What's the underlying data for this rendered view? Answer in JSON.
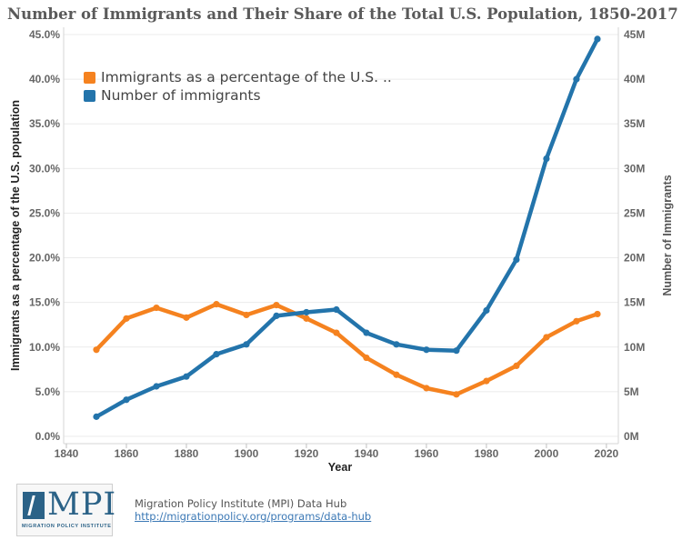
{
  "chart_data": {
    "type": "line",
    "title": "Number of Immigrants and Their Share of the Total U.S. Population, 1850-2017",
    "xlabel": "Year",
    "ylabel_left": "Immigrants as a percentage of the U.S. population",
    "ylabel_right": "Number of Immigrants",
    "xlim": [
      1840,
      2020
    ],
    "x_ticks": [
      1840,
      1860,
      1880,
      1900,
      1920,
      1940,
      1960,
      1980,
      2000,
      2020
    ],
    "ylim_left": [
      0,
      45
    ],
    "left_ticks": [
      "0.0%",
      "5.0%",
      "10.0%",
      "15.0%",
      "20.0%",
      "25.0%",
      "30.0%",
      "35.0%",
      "40.0%",
      "45.0%"
    ],
    "ylim_right": [
      0,
      45
    ],
    "right_ticks": [
      "0M",
      "5M",
      "10M",
      "15M",
      "20M",
      "25M",
      "30M",
      "35M",
      "40M",
      "45M"
    ],
    "grid": true,
    "legend_position": "top-left",
    "series": [
      {
        "name": "Immigrants as a percentage of the U.S. ..",
        "axis": "left",
        "color": "#f5821f",
        "x": [
          1850,
          1860,
          1870,
          1880,
          1890,
          1900,
          1910,
          1920,
          1930,
          1940,
          1950,
          1960,
          1970,
          1980,
          1990,
          2000,
          2010,
          2017
        ],
        "values": [
          9.7,
          13.2,
          14.4,
          13.3,
          14.8,
          13.6,
          14.7,
          13.2,
          11.6,
          8.8,
          6.9,
          5.4,
          4.7,
          6.2,
          7.9,
          11.1,
          12.9,
          13.7
        ]
      },
      {
        "name": "Number of immigrants",
        "axis": "right",
        "color": "#2374ab",
        "x": [
          1850,
          1860,
          1870,
          1880,
          1890,
          1900,
          1910,
          1920,
          1930,
          1940,
          1950,
          1960,
          1970,
          1980,
          1990,
          2000,
          2010,
          2017
        ],
        "values": [
          2.2,
          4.1,
          5.6,
          6.7,
          9.2,
          10.3,
          13.5,
          13.9,
          14.2,
          11.6,
          10.3,
          9.7,
          9.6,
          14.1,
          19.8,
          31.1,
          40.0,
          44.5
        ]
      }
    ]
  },
  "footer": {
    "logo_text": "MPI",
    "logo_subtext": "MIGRATION POLICY INSTITUTE",
    "source": "Migration Policy Institute (MPI) Data Hub",
    "link": "http://migrationpolicy.org/programs/data-hub"
  }
}
